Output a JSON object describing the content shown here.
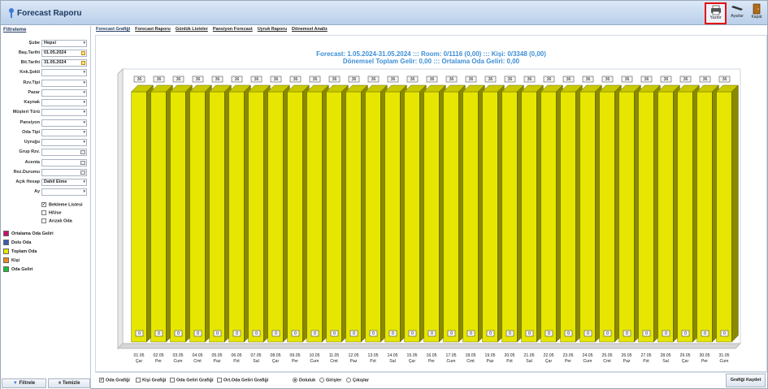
{
  "window": {
    "title": "Forecast Raporu",
    "toolbar": {
      "print_label": "Yazdır",
      "settings_label": "Ayarlar",
      "close_label": "Kapat"
    }
  },
  "left_panel": {
    "tab_label": "Filtreleme",
    "filters": [
      {
        "label": "Şube",
        "value": "Hepsi",
        "kind": "select"
      },
      {
        "label": "Baş.Tarihi",
        "value": "01.05.2024",
        "kind": "date"
      },
      {
        "label": "Bit.Tarihi",
        "value": "31.05.2024",
        "kind": "date"
      },
      {
        "label": "Knk.Şekli",
        "value": "",
        "kind": "select"
      },
      {
        "label": "Rzv.Tipi",
        "value": "",
        "kind": "select"
      },
      {
        "label": "Pazar",
        "value": "",
        "kind": "select"
      },
      {
        "label": "Kaynak",
        "value": "",
        "kind": "select"
      },
      {
        "label": "Müşteri Türü",
        "value": "",
        "kind": "select"
      },
      {
        "label": "Pansiyon",
        "value": "",
        "kind": "select"
      },
      {
        "label": "Oda Tipi",
        "value": "",
        "kind": "select"
      },
      {
        "label": "Uyruğu",
        "value": "",
        "kind": "select"
      },
      {
        "label": "Grup Rzv.",
        "value": "",
        "kind": "picker"
      },
      {
        "label": "Acenta",
        "value": "",
        "kind": "picker"
      },
      {
        "label": "Rez.Durumu",
        "value": "",
        "kind": "picker"
      },
      {
        "label": "Açık Hesap",
        "value": "Dahil Etme",
        "kind": "select"
      },
      {
        "label": "Ay",
        "value": "",
        "kind": "select"
      }
    ],
    "checkboxes": [
      {
        "label": "Bekleme Listesi",
        "checked": true
      },
      {
        "label": "H/Use",
        "checked": false
      },
      {
        "label": "Arızalı Oda",
        "checked": false
      }
    ],
    "legend": [
      {
        "label": "Ortalama Oda Geliri",
        "color": "#c0136e"
      },
      {
        "label": "Dolu Oda",
        "color": "#3a5bb0"
      },
      {
        "label": "Toplam Oda",
        "color": "#e6e600"
      },
      {
        "label": "Kişi",
        "color": "#f08a1c"
      },
      {
        "label": "Oda Geliri",
        "color": "#1bbf3a"
      }
    ],
    "filter_button": "Filtrele",
    "clear_button": "Temizle"
  },
  "tabs": [
    "Forecast Grafiği",
    "Forecast Raporu",
    "Günlük Listeler",
    "Pansiyon Forecast",
    "Uyruk Raporu",
    "Dönemsel Analiz"
  ],
  "chart_data": {
    "type": "bar",
    "title_line1": "Forecast: 1.05.2024-31.05.2024  :::  Room: 0/1116 (0,00)  :::  Kişi: 0/3348 (0,00)",
    "title_line2": "Dönemsel Toplam Gelir: 0,00  :::  Ortalama Oda Geliri: 0,00",
    "categories": [
      [
        "01.05",
        "Çar"
      ],
      [
        "02.05",
        "Per"
      ],
      [
        "03.05",
        "Cum"
      ],
      [
        "04.05",
        "Cmt"
      ],
      [
        "05.05",
        "Paz"
      ],
      [
        "06.05",
        "Pzt"
      ],
      [
        "07.05",
        "Sal"
      ],
      [
        "08.05",
        "Çar"
      ],
      [
        "09.05",
        "Per"
      ],
      [
        "10.05",
        "Cum"
      ],
      [
        "11.05",
        "Cmt"
      ],
      [
        "12.05",
        "Paz"
      ],
      [
        "13.05",
        "Pzt"
      ],
      [
        "14.05",
        "Sal"
      ],
      [
        "15.05",
        "Çar"
      ],
      [
        "16.05",
        "Per"
      ],
      [
        "17.05",
        "Cum"
      ],
      [
        "18.05",
        "Cmt"
      ],
      [
        "19.05",
        "Paz"
      ],
      [
        "20.05",
        "Pzt"
      ],
      [
        "21.05",
        "Sal"
      ],
      [
        "22.05",
        "Çar"
      ],
      [
        "23.05",
        "Per"
      ],
      [
        "24.05",
        "Cum"
      ],
      [
        "25.05",
        "Cmt"
      ],
      [
        "26.05",
        "Paz"
      ],
      [
        "27.05",
        "Pzt"
      ],
      [
        "28.05",
        "Sal"
      ],
      [
        "29.05",
        "Çar"
      ],
      [
        "30.05",
        "Per"
      ],
      [
        "31.05",
        "Cum"
      ]
    ],
    "series": [
      {
        "name": "Toplam Oda",
        "color": "#e6e600",
        "values": [
          36,
          36,
          36,
          36,
          36,
          36,
          36,
          36,
          36,
          36,
          36,
          36,
          36,
          36,
          36,
          36,
          36,
          36,
          36,
          36,
          36,
          36,
          36,
          36,
          36,
          36,
          36,
          36,
          36,
          36,
          36
        ]
      },
      {
        "name": "Dolu Oda",
        "color": "#3a5bb0",
        "values": [
          0,
          0,
          0,
          0,
          0,
          0,
          0,
          0,
          0,
          0,
          0,
          0,
          0,
          0,
          0,
          0,
          0,
          0,
          0,
          0,
          0,
          0,
          0,
          0,
          0,
          0,
          0,
          0,
          0,
          0,
          0
        ]
      }
    ],
    "ylim": [
      0,
      36
    ],
    "grid": false
  },
  "bottom": {
    "checkboxes": [
      {
        "label": "Oda Grafiği",
        "checked": true
      },
      {
        "label": "Kişi Grafiği",
        "checked": false
      },
      {
        "label": "Oda Geliri Grafiği",
        "checked": false
      },
      {
        "label": "Ort.Oda Geliri Grafiği",
        "checked": false
      }
    ],
    "radios": [
      {
        "label": "Doluluk",
        "checked": true
      },
      {
        "label": "Girişler",
        "checked": false
      },
      {
        "label": "Çıkışlar",
        "checked": false
      }
    ],
    "save_button": "Grafiği Kaydet"
  }
}
